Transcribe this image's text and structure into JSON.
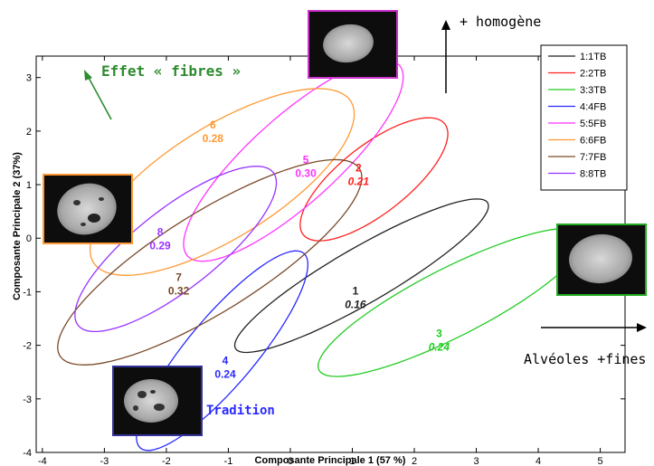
{
  "chart_data": {
    "type": "scatter",
    "title": "",
    "xlabel": "Composante Principale 1 (57 %)",
    "ylabel": "Composante Principale 2 (37%)",
    "xlim": [
      -4.1,
      5.4
    ],
    "ylim": [
      -4,
      3.4
    ],
    "xticks": [
      -4,
      -3,
      -2,
      -1,
      0,
      1,
      2,
      3,
      4,
      5
    ],
    "yticks": [
      -4,
      -3,
      -2,
      -1,
      0,
      1,
      2,
      3
    ],
    "legend_position": "top-right",
    "series": [
      {
        "name": "1:1TB",
        "color": "#222222",
        "label_num": "1",
        "label_value": "0.16",
        "italic": true,
        "ellipse": {
          "cx": 1.15,
          "cy": -0.7,
          "rx": 2.35,
          "ry": 0.45,
          "angle": 30
        },
        "label_at": [
          1.05,
          -1.05
        ]
      },
      {
        "name": "2:2TB",
        "color": "#ff2020",
        "label_num": "2",
        "label_value": "0.21",
        "italic": true,
        "ellipse": {
          "cx": 1.35,
          "cy": 1.1,
          "rx": 1.45,
          "ry": 0.55,
          "angle": 38
        },
        "label_at": [
          1.1,
          1.25
        ]
      },
      {
        "name": "3:3TB",
        "color": "#22cc22",
        "label_num": "3",
        "label_value": "0.24",
        "italic": true,
        "ellipse": {
          "cx": 2.6,
          "cy": -1.2,
          "rx": 2.4,
          "ry": 0.55,
          "angle": 27
        },
        "label_at": [
          2.4,
          -1.85
        ]
      },
      {
        "name": "4:4FB",
        "color": "#2a2aff",
        "label_num": "4",
        "label_value": "0.24",
        "italic": false,
        "ellipse": {
          "cx": -1.1,
          "cy": -2.1,
          "rx": 2.05,
          "ry": 0.55,
          "angle": 50
        },
        "label_at": [
          -1.05,
          -2.35
        ]
      },
      {
        "name": "5:5FB",
        "color": "#ff33ff",
        "label_num": "5",
        "label_value": "0.30",
        "italic": false,
        "ellipse": {
          "cx": 0.05,
          "cy": 1.45,
          "rx": 2.3,
          "ry": 0.7,
          "angle": 42
        },
        "label_at": [
          0.25,
          1.4
        ]
      },
      {
        "name": "6:6FB",
        "color": "#ff9933",
        "label_num": "6",
        "label_value": "0.28",
        "italic": false,
        "ellipse": {
          "cx": -1.1,
          "cy": 1.05,
          "rx": 2.45,
          "ry": 0.9,
          "angle": 32
        },
        "label_at": [
          -1.25,
          2.05
        ]
      },
      {
        "name": "7:7FB",
        "color": "#7a4a2a",
        "label_num": "7",
        "label_value": "0.32",
        "italic": false,
        "ellipse": {
          "cx": -1.3,
          "cy": -0.45,
          "rx": 2.85,
          "ry": 0.8,
          "angle": 32
        },
        "label_at": [
          -1.8,
          -0.8
        ]
      },
      {
        "name": "8:8TB",
        "color": "#9933ff",
        "label_num": "8",
        "label_value": "0.29",
        "italic": false,
        "ellipse": {
          "cx": -1.85,
          "cy": -0.2,
          "rx": 2.0,
          "ry": 0.65,
          "angle": 38
        },
        "label_at": [
          -2.1,
          0.05
        ]
      }
    ],
    "annotations": [
      {
        "id": "effet",
        "text": "Effet « fibres »",
        "color": "#2e8b2e"
      },
      {
        "id": "homogene",
        "text": "+ homogène",
        "color": "#000000"
      },
      {
        "id": "alveoles",
        "text": "Alvéoles +fines",
        "color": "#000000"
      },
      {
        "id": "tradition",
        "text": "Tradition",
        "color": "#2a2aff"
      }
    ]
  },
  "photos": [
    {
      "id": "top",
      "frame_color": "#cc33cc"
    },
    {
      "id": "left",
      "frame_color": "#ff9933"
    },
    {
      "id": "right",
      "frame_color": "#22aa22"
    },
    {
      "id": "bottom",
      "frame_color": "#333399"
    }
  ]
}
